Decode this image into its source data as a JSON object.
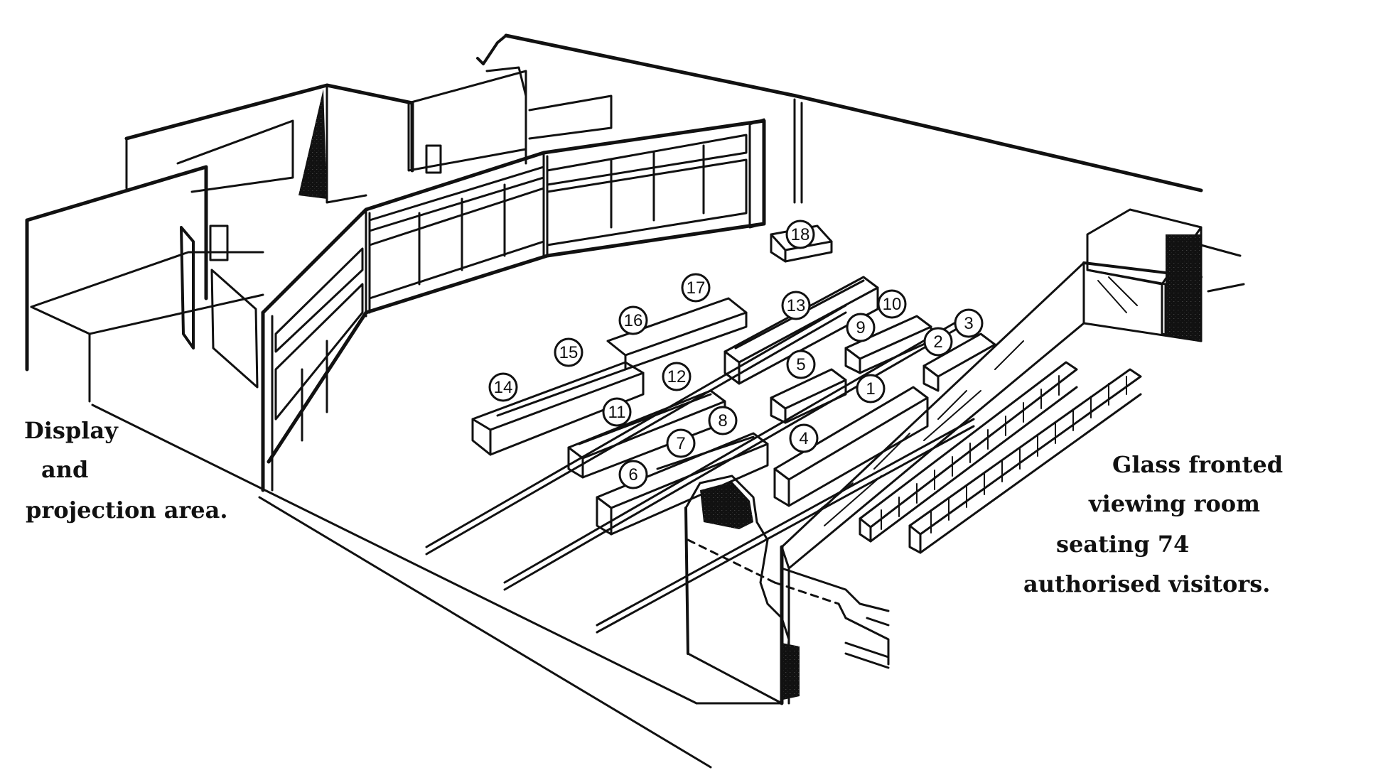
{
  "labels": {
    "left_caption": [
      "Display",
      "and",
      "projection area."
    ],
    "right_caption": [
      "Glass fronted",
      "viewing room",
      "seating 74",
      "authorised visitors."
    ]
  },
  "console_numbers": [
    "1",
    "2",
    "3",
    "4",
    "5",
    "6",
    "7",
    "8",
    "9",
    "10",
    "11",
    "12",
    "13",
    "14",
    "15",
    "16",
    "17",
    "18"
  ],
  "colors": {
    "ink": "#111111",
    "paper": "#ffffff"
  }
}
